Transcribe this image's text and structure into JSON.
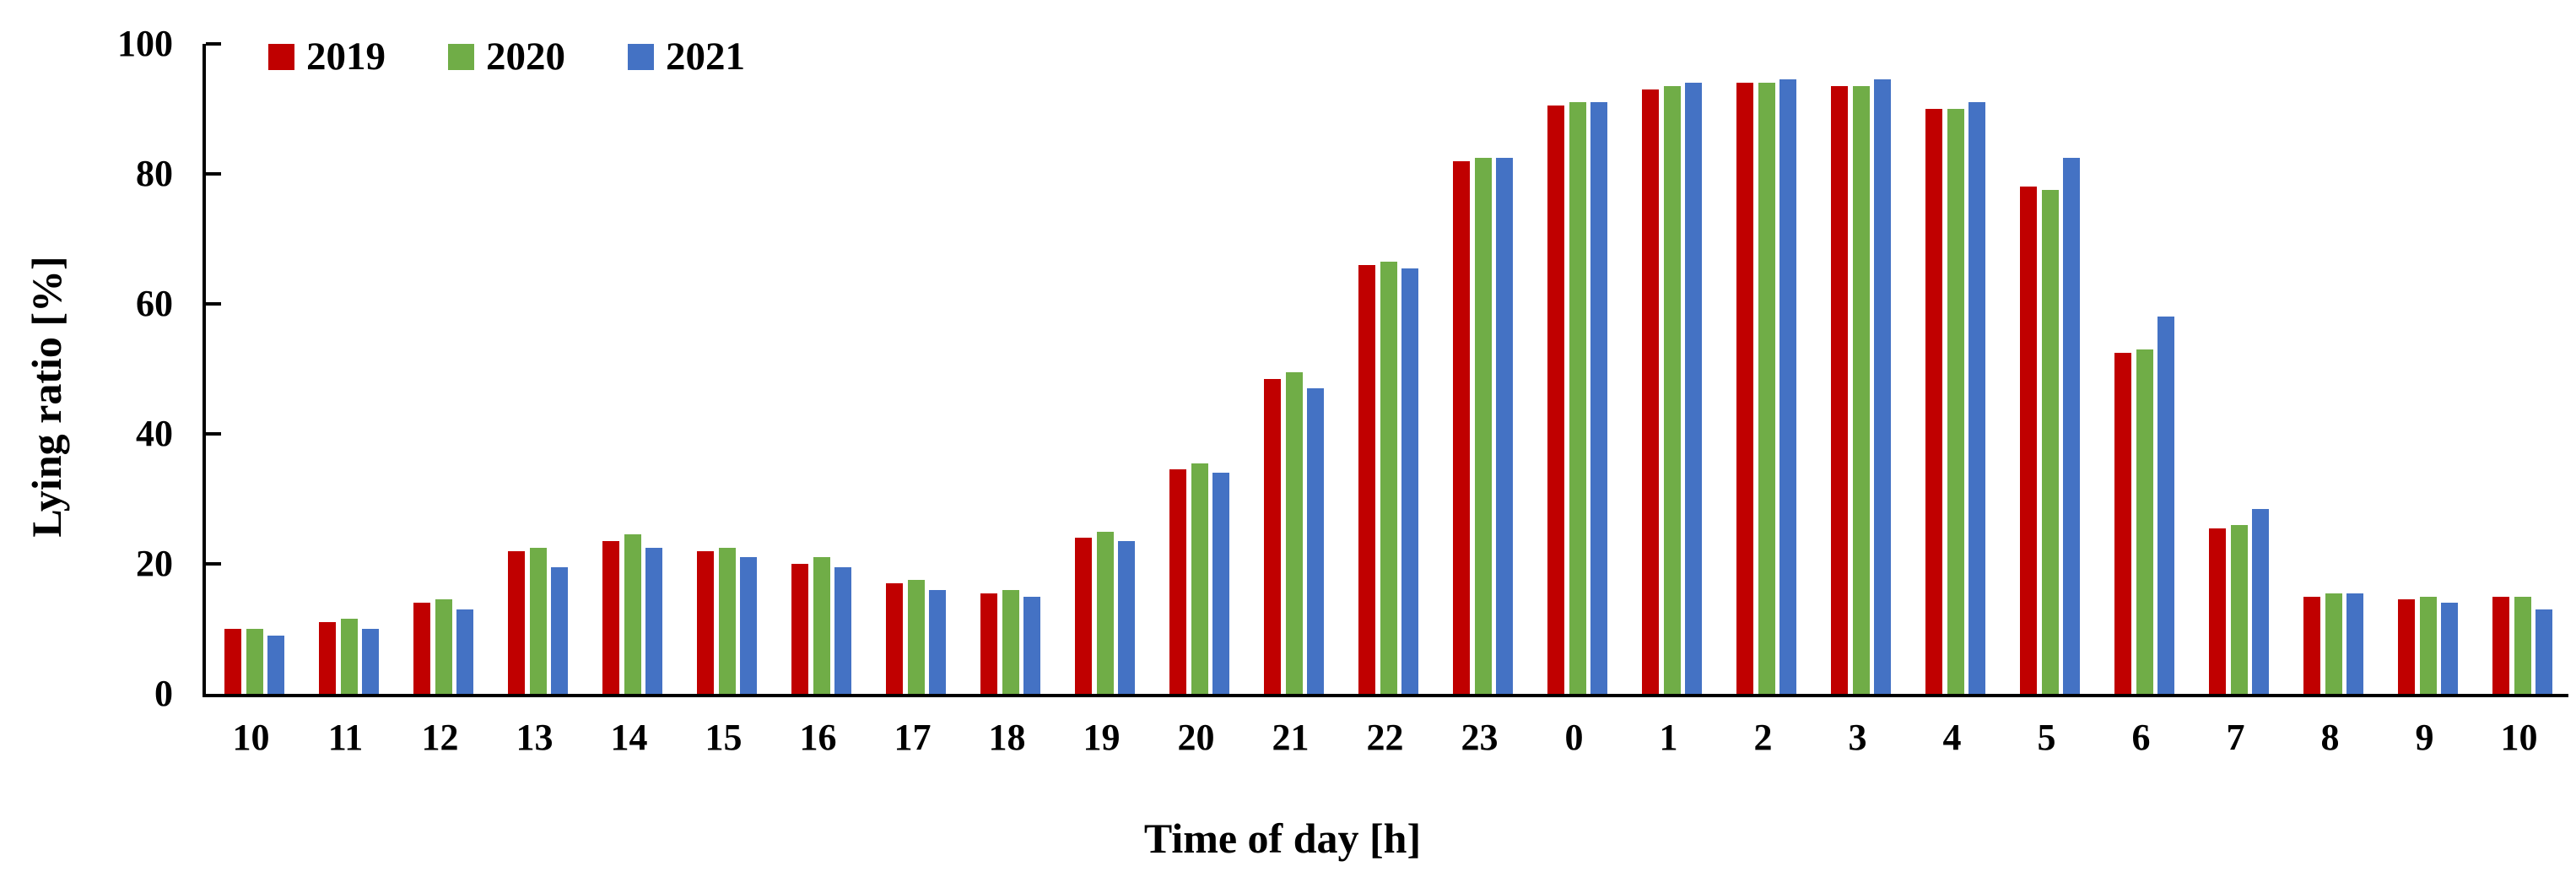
{
  "chart_data": {
    "type": "bar",
    "title": "",
    "xlabel": "Time of day [h]",
    "ylabel": "Lying ratio [%]",
    "ylim": [
      0,
      100
    ],
    "yticks": [
      0,
      20,
      40,
      60,
      80,
      100
    ],
    "grid": false,
    "legend_position": "top-left-inside",
    "categories": [
      "10",
      "11",
      "12",
      "13",
      "14",
      "15",
      "16",
      "17",
      "18",
      "19",
      "20",
      "21",
      "22",
      "23",
      "0",
      "1",
      "2",
      "3",
      "4",
      "5",
      "6",
      "7",
      "8",
      "9",
      "10"
    ],
    "series": [
      {
        "name": "2019",
        "color": "#c00000",
        "values": [
          10,
          11,
          14,
          22,
          23.5,
          22,
          20,
          17,
          15.5,
          24,
          34.5,
          48.5,
          66,
          82,
          90.5,
          93,
          94,
          93.5,
          90,
          78,
          52.5,
          25.5,
          15,
          14.5,
          15
        ]
      },
      {
        "name": "2020",
        "color": "#70ad47",
        "values": [
          10,
          11.5,
          14.5,
          22.5,
          24.5,
          22.5,
          21,
          17.5,
          16,
          25,
          35.5,
          49.5,
          66.5,
          82.5,
          91,
          93.5,
          94,
          93.5,
          90,
          77.5,
          53,
          26,
          15.5,
          15,
          15
        ]
      },
      {
        "name": "2021",
        "color": "#4472c4",
        "values": [
          9,
          10,
          13,
          19.5,
          22.5,
          21,
          19.5,
          16,
          15,
          23.5,
          34,
          47,
          65.5,
          82.5,
          91,
          94,
          94.5,
          94.5,
          91,
          82.5,
          58,
          28.5,
          15.5,
          14,
          13
        ]
      }
    ]
  }
}
